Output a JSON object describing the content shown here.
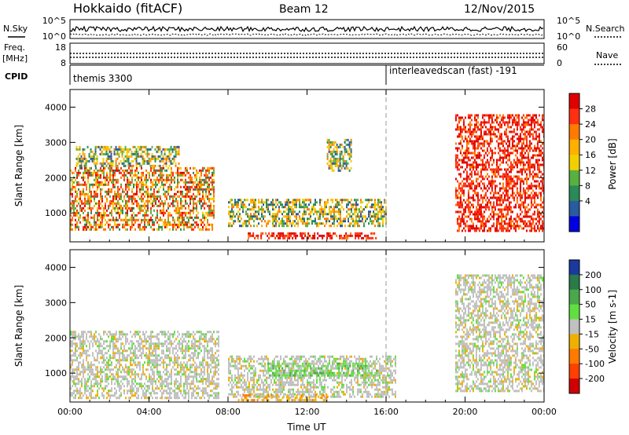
{
  "header": {
    "station": "Hokkaido (fitACF)",
    "beam": "Beam 12",
    "date": "12/Nov/2015"
  },
  "side_labels": {
    "nsky": "N.Sky",
    "nsearch": "N.Search",
    "freq": "Freq.",
    "freq_unit": "[MHz]",
    "nave": "Nave",
    "cpid": "CPID"
  },
  "noise_panel": {
    "left_ticks": [
      "10^5",
      "10^0"
    ],
    "right_ticks": [
      "10^5",
      "10^0"
    ]
  },
  "freq_panel": {
    "left_ticks": [
      "18",
      "8"
    ],
    "right_ticks": [
      "60",
      "0"
    ]
  },
  "cpid_panel": {
    "modes": [
      {
        "label": "themis 3300",
        "start_hour": 0
      },
      {
        "label": "interleavedscan (fast) -191",
        "start_hour": 16
      }
    ]
  },
  "colorbars": {
    "power": {
      "label": "Power [dB]",
      "ticks": [
        "28",
        "24",
        "20",
        "16",
        "12",
        "8",
        "4"
      ],
      "colors": [
        "#e00000",
        "#ff3010",
        "#ff7a00",
        "#ffb000",
        "#f2d000",
        "#58b040",
        "#2a8a58",
        "#2a5aa0",
        "#0000e0"
      ]
    },
    "velocity": {
      "label": "Velocity [m s-1]",
      "ticks": [
        "200",
        "100",
        "50",
        "15",
        "-15",
        "-50",
        "-100",
        "-200"
      ],
      "colors": [
        "#1a3aa0",
        "#2a7a4a",
        "#4aa84a",
        "#60e040",
        "#c0c0c0",
        "#f0b000",
        "#ff7a00",
        "#ff4000",
        "#d00000"
      ]
    }
  },
  "chart_data": [
    {
      "type": "heatmap",
      "name": "power-panel",
      "ylabel": "Slant Range [km]",
      "xlim": [
        0,
        24
      ],
      "ylim": [
        180,
        4500
      ],
      "y_ticks": [
        "1000",
        "2000",
        "3000",
        "4000"
      ],
      "x_ticks": [
        "00:00",
        "04:00",
        "08:00",
        "12:00",
        "16:00",
        "20:00",
        "00:00"
      ],
      "regions": [
        {
          "t0": 0.0,
          "t1": 7.3,
          "r0": 500,
          "r1": 2300,
          "level": "mixed-high"
        },
        {
          "t0": 0.3,
          "t1": 5.5,
          "r0": 2300,
          "r1": 2900,
          "level": "medium"
        },
        {
          "t0": 8.0,
          "t1": 16.0,
          "r0": 600,
          "r1": 1400,
          "level": "medium"
        },
        {
          "t0": 9.0,
          "t1": 15.5,
          "r0": 250,
          "r1": 450,
          "level": "high"
        },
        {
          "t0": 13.0,
          "t1": 14.2,
          "r0": 2200,
          "r1": 3100,
          "level": "medium"
        },
        {
          "t0": 19.5,
          "t1": 24.0,
          "r0": 500,
          "r1": 3800,
          "level": "high"
        }
      ]
    },
    {
      "type": "heatmap",
      "name": "velocity-panel",
      "ylabel": "Slant Range [km]",
      "xlabel": "Time UT",
      "xlim": [
        0,
        24
      ],
      "ylim": [
        180,
        4500
      ],
      "y_ticks": [
        "1000",
        "2000",
        "3000",
        "4000"
      ],
      "x_ticks": [
        "00:00",
        "04:00",
        "08:00",
        "12:00",
        "16:00",
        "20:00",
        "00:00"
      ],
      "regions": [
        {
          "t0": 0.0,
          "t1": 7.5,
          "r0": 300,
          "r1": 2200,
          "level": "near-zero"
        },
        {
          "t0": 8.0,
          "t1": 16.5,
          "r0": 300,
          "r1": 1500,
          "level": "near-zero"
        },
        {
          "t0": 10.0,
          "t1": 15.5,
          "r0": 900,
          "r1": 1300,
          "level": "positive-small"
        },
        {
          "t0": 8.5,
          "t1": 13.0,
          "r0": 250,
          "r1": 400,
          "level": "negative-small"
        },
        {
          "t0": 19.5,
          "t1": 24.0,
          "r0": 500,
          "r1": 3800,
          "level": "near-zero"
        }
      ]
    }
  ]
}
